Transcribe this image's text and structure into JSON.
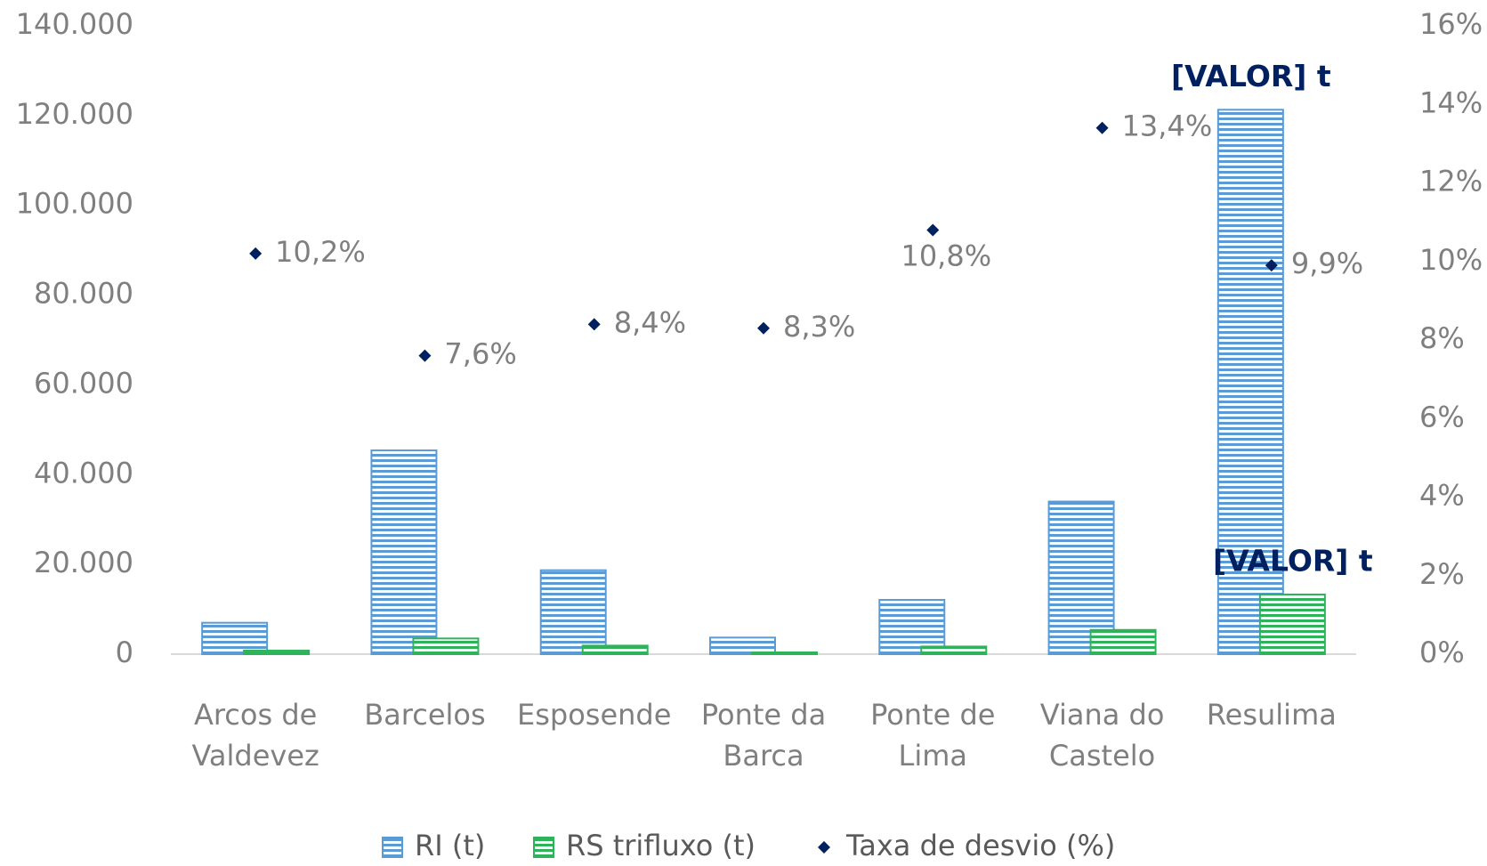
{
  "chart_data": {
    "type": "bar",
    "categories": [
      "Arcos de Valdevez",
      "Barcelos",
      "Esposende",
      "Ponte da Barca",
      "Ponte de Lima",
      "Viana do Castelo",
      "Resulima"
    ],
    "series": [
      {
        "name": "RI (t)",
        "color": "#5b9bd5",
        "values": [
          7000,
          45400,
          18700,
          3700,
          12100,
          34000,
          121300
        ]
      },
      {
        "name": "RS trifluxo (t)",
        "color": "#2eb35a",
        "values": [
          800,
          3500,
          1900,
          400,
          1700,
          5400,
          13300
        ]
      },
      {
        "name": "Taxa de desvio (%)",
        "color": "#002060",
        "type": "scatter",
        "axis": "y2",
        "values": [
          10.2,
          7.6,
          8.4,
          8.3,
          10.8,
          13.4,
          9.9
        ],
        "value_labels": [
          "10,2%",
          "7,6%",
          "8,4%",
          "8,3%",
          "10,8%",
          "13,4%",
          "9,9%"
        ]
      }
    ],
    "annotations": [
      "[VALOR] t",
      "[VALOR] t"
    ],
    "ylim": [
      0,
      140000
    ],
    "yticks": [
      0,
      {
        "value": 20000,
        "label": "20.000"
      },
      {
        "value": 40000,
        "label": "40.000"
      },
      {
        "value": 60000,
        "label": "60.000"
      },
      {
        "value": 80000,
        "label": "80.000"
      },
      {
        "value": 100000,
        "label": "100.000"
      },
      {
        "value": 120000,
        "label": "120.000"
      },
      {
        "value": 140000,
        "label": "140.000"
      }
    ],
    "y2lim": [
      0,
      16
    ],
    "y2ticks": [
      {
        "value": 0,
        "label": "0%"
      },
      {
        "value": 2,
        "label": "2%"
      },
      {
        "value": 4,
        "label": "4%"
      },
      {
        "value": 6,
        "label": "6%"
      },
      {
        "value": 8,
        "label": "8%"
      },
      {
        "value": 10,
        "label": "10%"
      },
      {
        "value": 12,
        "label": "12%"
      },
      {
        "value": 14,
        "label": "14%"
      },
      {
        "value": 16,
        "label": "16%"
      }
    ],
    "grid": false,
    "legend": "bottom"
  }
}
